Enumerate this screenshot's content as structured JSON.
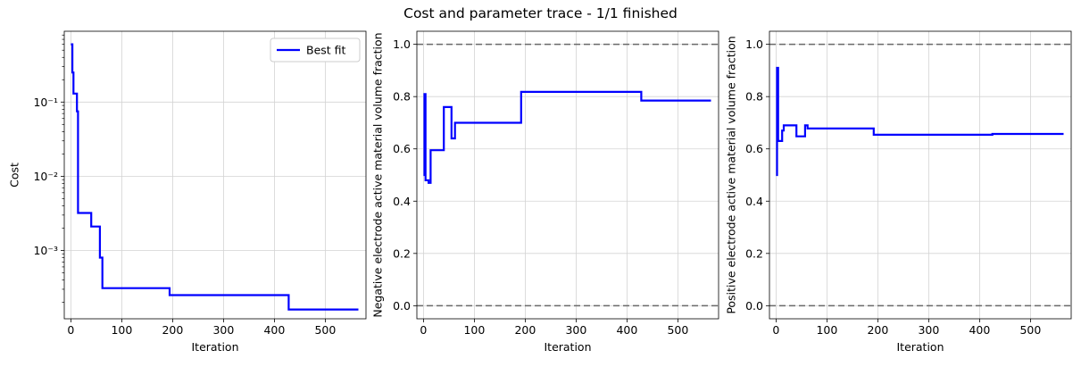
{
  "figure": {
    "title": "Cost and parameter trace - 1/1 finished"
  },
  "chart_data": [
    {
      "type": "line",
      "xlabel": "Iteration",
      "ylabel": "Cost",
      "yscale": "log",
      "xlim": [
        -13,
        580
      ],
      "ylim": [
        0.00012,
        0.9
      ],
      "xticks": [
        0,
        100,
        200,
        300,
        400,
        500
      ],
      "xtick_labels": [
        "0",
        "100",
        "200",
        "300",
        "400",
        "500"
      ],
      "yticks": [
        0.001,
        0.01,
        0.1
      ],
      "ytick_labels": [
        "10⁻³",
        "10⁻²",
        "10⁻¹"
      ],
      "grid": true,
      "legend": {
        "position": "top-right",
        "entries": [
          "Best fit"
        ]
      },
      "series": [
        {
          "name": "Best fit",
          "color": "#0000ff",
          "step": true,
          "x": [
            0,
            3,
            5,
            12,
            14,
            35,
            40,
            55,
            57,
            60,
            62,
            192,
            194,
            425,
            428,
            565
          ],
          "y": [
            0.6,
            0.25,
            0.13,
            0.075,
            0.0032,
            0.0032,
            0.0021,
            0.0021,
            0.0008,
            0.0008,
            0.00031,
            0.00031,
            0.00025,
            0.00025,
            0.00016,
            0.00016
          ]
        }
      ]
    },
    {
      "type": "line",
      "xlabel": "Iteration",
      "ylabel": "Negative electrode active material volume fraction",
      "yscale": "linear",
      "xlim": [
        -13,
        580
      ],
      "ylim": [
        -0.05,
        1.05
      ],
      "xticks": [
        0,
        100,
        200,
        300,
        400,
        500
      ],
      "xtick_labels": [
        "0",
        "100",
        "200",
        "300",
        "400",
        "500"
      ],
      "yticks": [
        0.0,
        0.2,
        0.4,
        0.6,
        0.8,
        1.0
      ],
      "ytick_labels": [
        "0.0",
        "0.2",
        "0.4",
        "0.6",
        "0.8",
        "1.0"
      ],
      "grid": true,
      "bounds": [
        0.0,
        1.0
      ],
      "bound_color": "#696969",
      "series": [
        {
          "color": "#0000ff",
          "step": true,
          "x": [
            0,
            2,
            4,
            6,
            10,
            14,
            40,
            55,
            57,
            62,
            192,
            428,
            565
          ],
          "y": [
            0.5,
            0.81,
            0.48,
            0.48,
            0.47,
            0.595,
            0.76,
            0.64,
            0.64,
            0.7,
            0.818,
            0.785,
            0.785
          ]
        }
      ]
    },
    {
      "type": "line",
      "xlabel": "Iteration",
      "ylabel": "Positive electrode active material volume fraction",
      "yscale": "linear",
      "xlim": [
        -13,
        580
      ],
      "ylim": [
        -0.05,
        1.05
      ],
      "xticks": [
        0,
        100,
        200,
        300,
        400,
        500
      ],
      "xtick_labels": [
        "0",
        "100",
        "200",
        "300",
        "400",
        "500"
      ],
      "yticks": [
        0.0,
        0.2,
        0.4,
        0.6,
        0.8,
        1.0
      ],
      "ytick_labels": [
        "0.0",
        "0.2",
        "0.4",
        "0.6",
        "0.8",
        "1.0"
      ],
      "grid": true,
      "bounds": [
        0.0,
        1.0
      ],
      "bound_color": "#696969",
      "series": [
        {
          "color": "#0000ff",
          "step": true,
          "x": [
            0,
            2,
            4,
            8,
            12,
            15,
            35,
            40,
            55,
            57,
            60,
            62,
            192,
            425,
            565
          ],
          "y": [
            0.5,
            0.91,
            0.63,
            0.63,
            0.67,
            0.69,
            0.69,
            0.648,
            0.648,
            0.69,
            0.69,
            0.678,
            0.654,
            0.657,
            0.657
          ]
        }
      ]
    }
  ]
}
